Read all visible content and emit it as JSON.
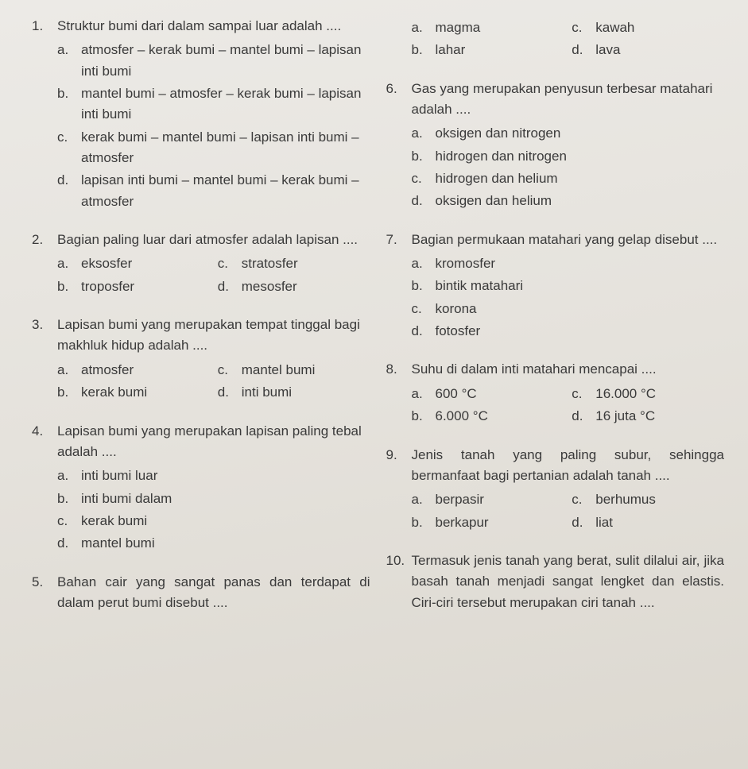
{
  "left": [
    {
      "num": "1.",
      "stem": "Struktur bumi dari dalam sampai luar adalah ....",
      "layout": "vert",
      "opts": [
        {
          "l": "a.",
          "t": "atmosfer – kerak bumi – mantel bumi – lapisan inti bumi"
        },
        {
          "l": "b.",
          "t": "mantel bumi – atmosfer – kerak bumi – lapisan inti bumi"
        },
        {
          "l": "c.",
          "t": "kerak bumi – mantel bumi – lapisan inti bumi – atmosfer"
        },
        {
          "l": "d.",
          "t": "lapisan inti bumi – mantel bumi – kerak bumi – atmosfer"
        }
      ]
    },
    {
      "num": "2.",
      "stem": "Bagian paling luar dari atmosfer adalah lapisan ....",
      "layout": "grid",
      "opts": [
        {
          "l": "a.",
          "t": "eksosfer"
        },
        {
          "l": "c.",
          "t": "stratosfer"
        },
        {
          "l": "b.",
          "t": "troposfer"
        },
        {
          "l": "d.",
          "t": "mesosfer"
        }
      ]
    },
    {
      "num": "3.",
      "stem": "Lapisan bumi yang merupakan tempat tinggal bagi makhluk hidup adalah ....",
      "layout": "grid",
      "opts": [
        {
          "l": "a.",
          "t": "atmosfer"
        },
        {
          "l": "c.",
          "t": "mantel bumi"
        },
        {
          "l": "b.",
          "t": "kerak bumi"
        },
        {
          "l": "d.",
          "t": "inti bumi"
        }
      ]
    },
    {
      "num": "4.",
      "stem": "Lapisan bumi yang merupakan lapisan paling tebal adalah ....",
      "layout": "vert",
      "opts": [
        {
          "l": "a.",
          "t": "inti bumi luar"
        },
        {
          "l": "b.",
          "t": "inti bumi dalam"
        },
        {
          "l": "c.",
          "t": "kerak bumi"
        },
        {
          "l": "d.",
          "t": "mantel bumi"
        }
      ]
    },
    {
      "num": "5.",
      "stem": "Bahan cair yang sangat panas dan terdapat di dalam perut bumi disebut ....",
      "layout": "none",
      "justify": true,
      "opts": []
    }
  ],
  "right": [
    {
      "num": "",
      "stem": "",
      "layout": "grid",
      "opts": [
        {
          "l": "a.",
          "t": "magma"
        },
        {
          "l": "c.",
          "t": "kawah"
        },
        {
          "l": "b.",
          "t": "lahar"
        },
        {
          "l": "d.",
          "t": "lava"
        }
      ]
    },
    {
      "num": "6.",
      "stem": "Gas yang merupakan penyusun terbesar matahari adalah ....",
      "layout": "vert",
      "opts": [
        {
          "l": "a.",
          "t": "oksigen dan nitrogen"
        },
        {
          "l": "b.",
          "t": "hidrogen dan nitrogen"
        },
        {
          "l": "c.",
          "t": "hidrogen dan helium"
        },
        {
          "l": "d.",
          "t": "oksigen dan helium"
        }
      ]
    },
    {
      "num": "7.",
      "stem": "Bagian permukaan matahari yang gelap disebut ....",
      "layout": "vert",
      "justify": true,
      "opts": [
        {
          "l": "a.",
          "t": "kromosfer"
        },
        {
          "l": "b.",
          "t": "bintik matahari"
        },
        {
          "l": "c.",
          "t": "korona"
        },
        {
          "l": "d.",
          "t": "fotosfer"
        }
      ]
    },
    {
      "num": "8.",
      "stem": "Suhu di dalam inti matahari mencapai ....",
      "layout": "grid",
      "opts": [
        {
          "l": "a.",
          "t": "600 °C"
        },
        {
          "l": "c.",
          "t": "16.000 °C"
        },
        {
          "l": "b.",
          "t": "6.000 °C"
        },
        {
          "l": "d.",
          "t": "16 juta °C"
        }
      ]
    },
    {
      "num": "9.",
      "stem": "Jenis tanah yang paling subur, sehingga bermanfaat bagi pertanian adalah tanah ....",
      "layout": "grid",
      "justify": true,
      "opts": [
        {
          "l": "a.",
          "t": "berpasir"
        },
        {
          "l": "c.",
          "t": "berhumus"
        },
        {
          "l": "b.",
          "t": "berkapur"
        },
        {
          "l": "d.",
          "t": "liat"
        }
      ]
    },
    {
      "num": "10.",
      "stem": "Termasuk jenis tanah yang berat, sulit dilalui air, jika basah tanah menjadi sangat lengket dan elastis. Ciri-ciri tersebut merupakan ciri tanah ....",
      "layout": "none",
      "justify": true,
      "opts": []
    }
  ]
}
